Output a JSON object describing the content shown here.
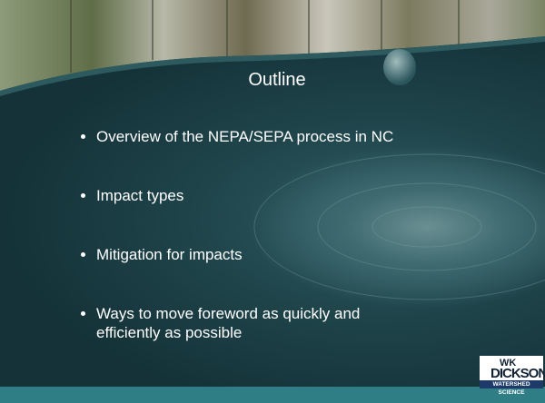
{
  "slide": {
    "title": "Outline",
    "bullets": [
      "Overview of the NEPA/SEPA process in NC",
      "Impact types",
      "Mitigation for impacts",
      "Ways to move foreword as quickly and efficiently as possible"
    ],
    "logo": {
      "mark": "WK",
      "name": "DICKSON",
      "tagline": "WATERSHED SCIENCE"
    }
  }
}
